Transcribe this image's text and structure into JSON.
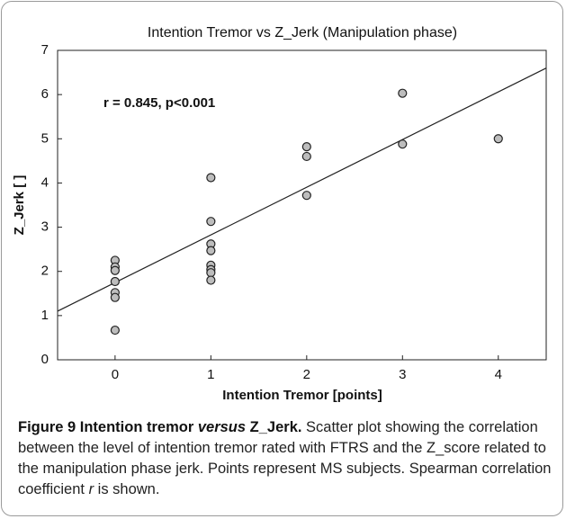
{
  "chart_data": {
    "type": "scatter",
    "title": "Intention Tremor vs Z_Jerk (Manipulation phase)",
    "x_label": "Intention Tremor [points]",
    "y_label": "Z_Jerk [ ]",
    "annotation": "r = 0.845, p<0.001",
    "x": [
      0,
      0,
      0,
      0,
      0,
      0,
      0,
      1,
      1,
      1,
      1,
      1,
      1,
      1,
      1,
      2,
      2,
      2,
      3,
      3,
      4
    ],
    "values": [
      2.25,
      2.1,
      2.02,
      1.77,
      1.52,
      1.41,
      0.67,
      4.12,
      3.13,
      2.62,
      2.47,
      2.14,
      2.04,
      1.97,
      1.8,
      4.82,
      4.6,
      3.72,
      6.03,
      4.88,
      5.0
    ],
    "color": "#bdbdbd",
    "fit_line": {
      "x": [
        -0.6,
        4.5
      ],
      "values": [
        1.1,
        6.6
      ]
    },
    "xlim": [
      -0.6,
      4.5
    ],
    "xticks": [
      0,
      1,
      2,
      3,
      4
    ],
    "ylim": [
      0,
      7
    ],
    "yticks": [
      0,
      1,
      2,
      3,
      4,
      5,
      6,
      7
    ]
  },
  "caption": {
    "label": "Figure 9 Intention tremor ",
    "label_italic": "versus",
    "label_end": " Z_Jerk.",
    "text": " Scatter plot showing the correlation between the level of intention tremor rated with FTRS and the Z_score related to the manipulation phase jerk. Points represent MS subjects. Spearman correlation coefficient ",
    "text_italic": "r",
    "text_end": " is shown."
  }
}
